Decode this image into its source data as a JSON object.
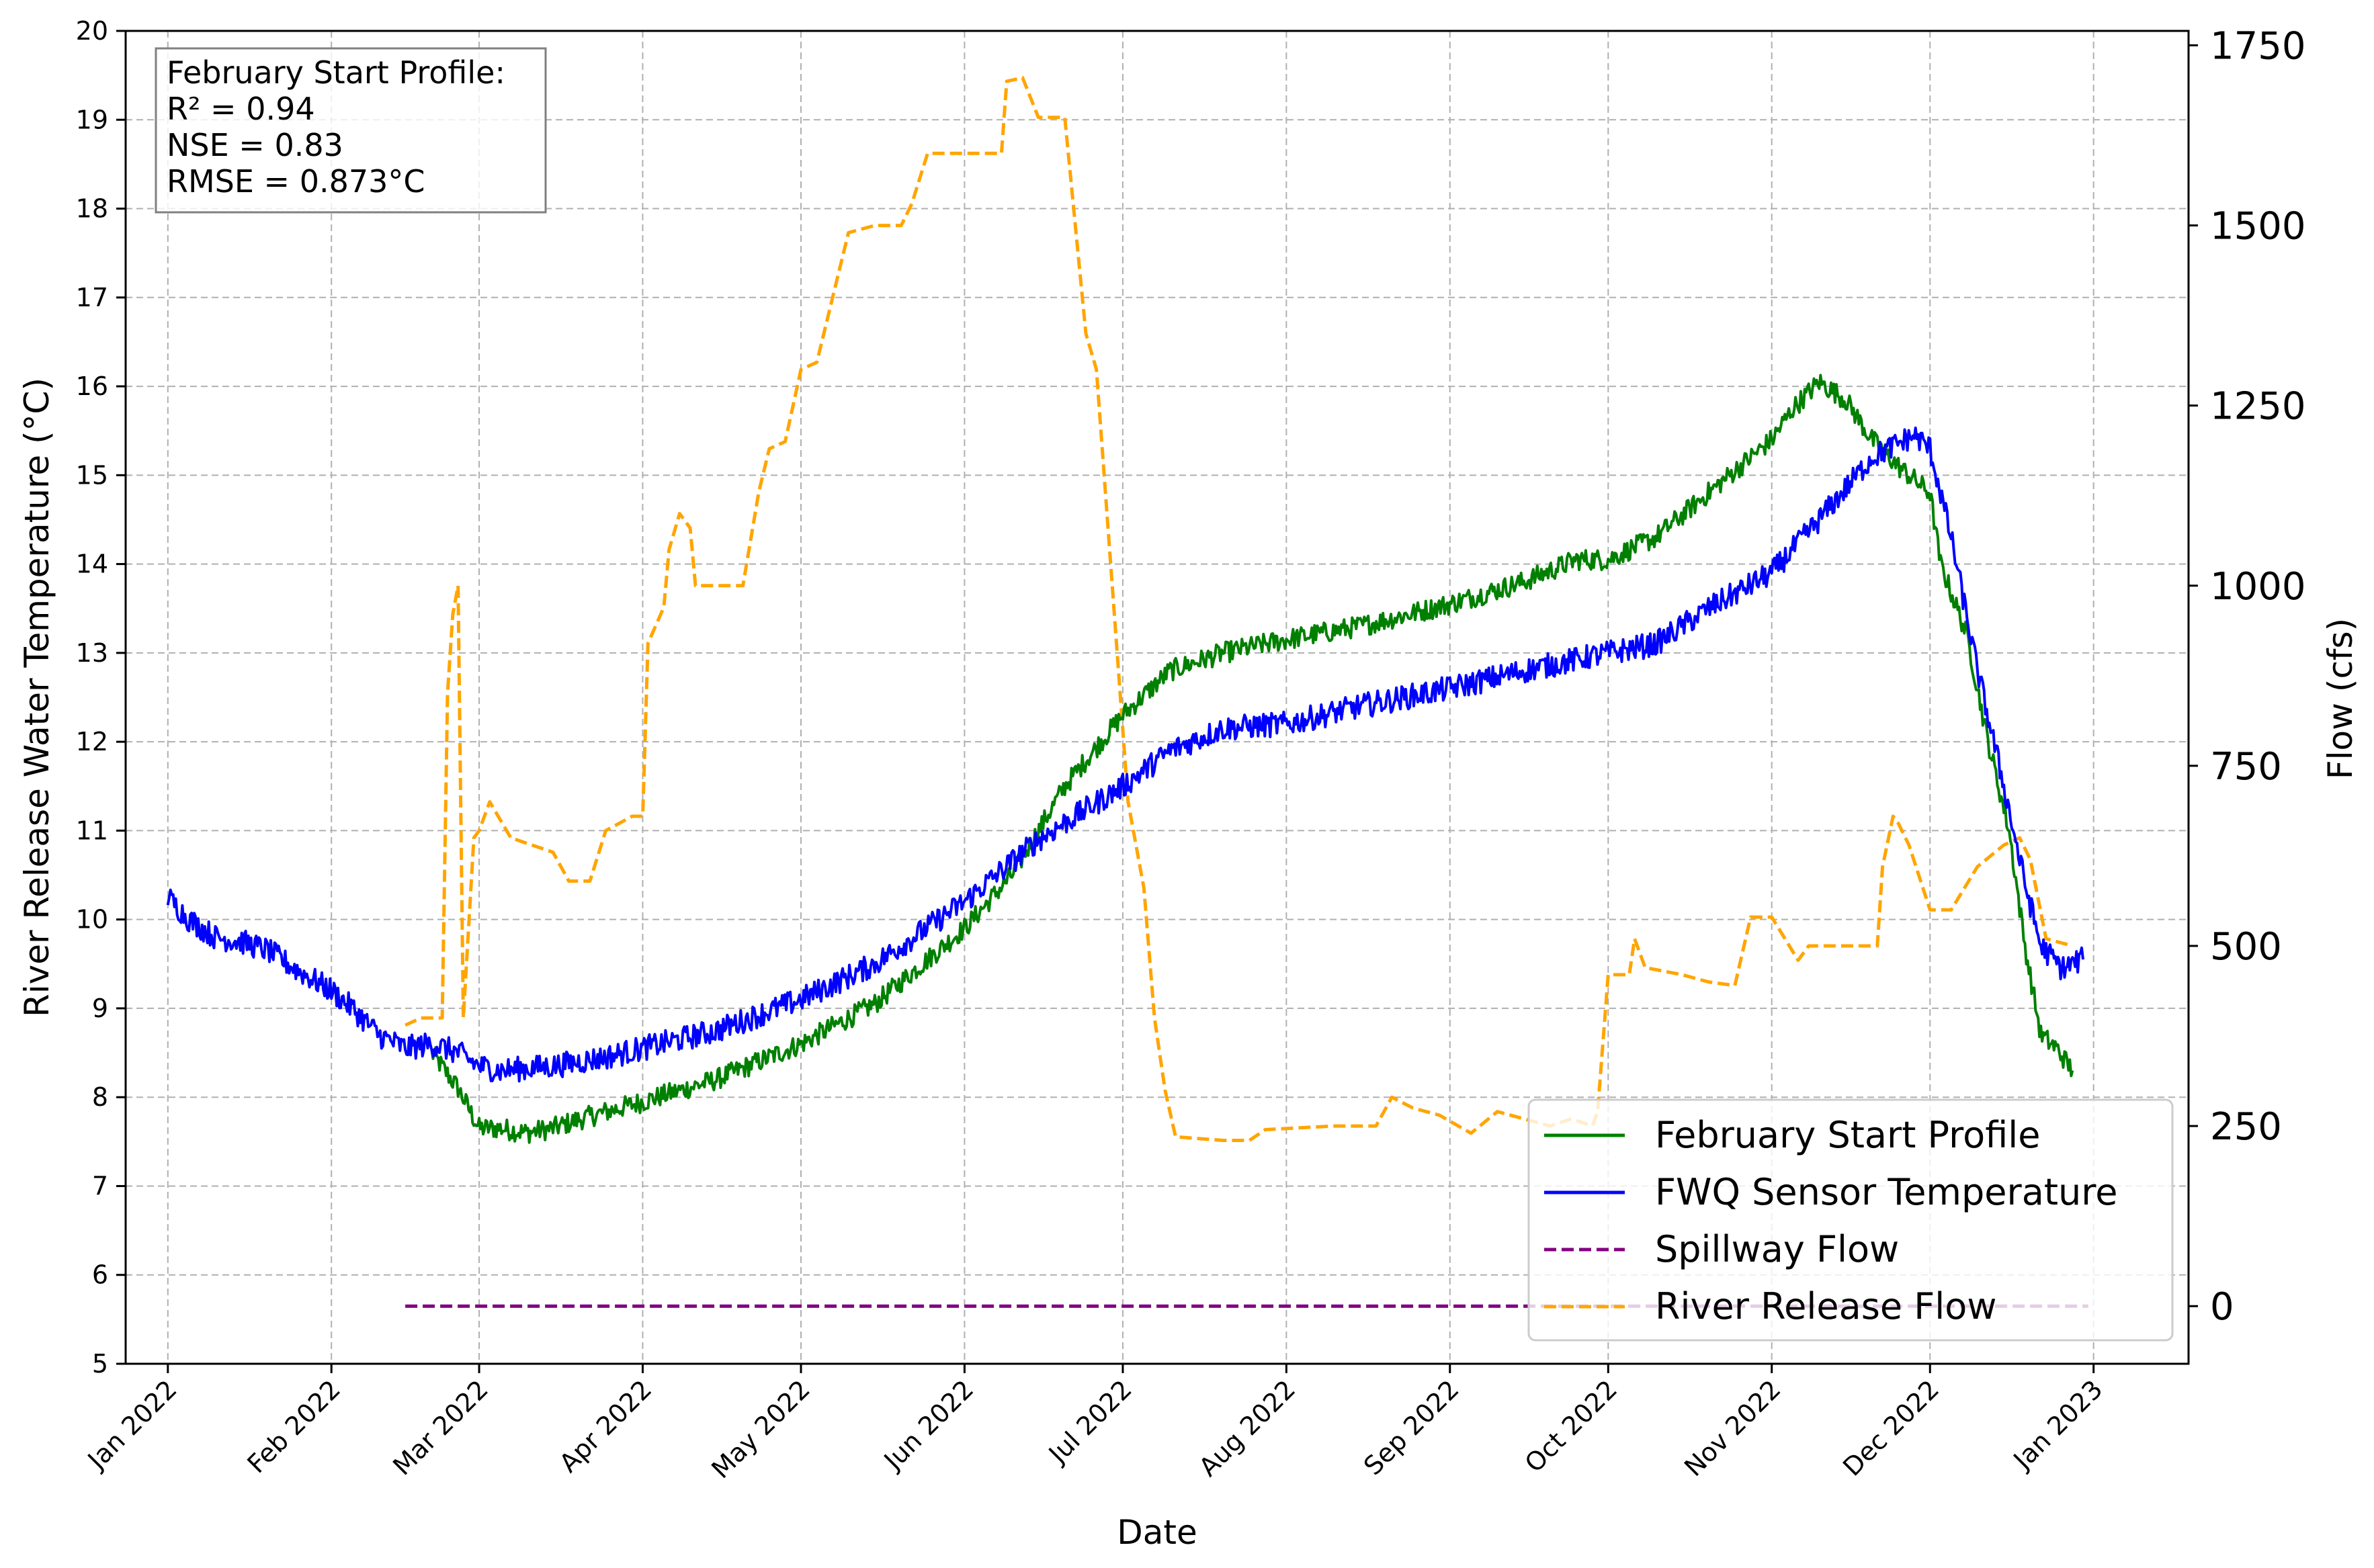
{
  "chart_data": {
    "type": "line",
    "xlabel": "Date",
    "ylabel_left": "River Release Water Temperature (°C)",
    "ylabel_right": "Flow (cfs)",
    "x_range": [
      "2021-12-24",
      "2023-01-19"
    ],
    "x_ticks": [
      {
        "date": "2022-01-01",
        "label": "Jan 2022"
      },
      {
        "date": "2022-02-01",
        "label": "Feb 2022"
      },
      {
        "date": "2022-03-01",
        "label": "Mar 2022"
      },
      {
        "date": "2022-04-01",
        "label": "Apr 2022"
      },
      {
        "date": "2022-05-01",
        "label": "May 2022"
      },
      {
        "date": "2022-06-01",
        "label": "Jun 2022"
      },
      {
        "date": "2022-07-01",
        "label": "Jul 2022"
      },
      {
        "date": "2022-08-01",
        "label": "Aug 2022"
      },
      {
        "date": "2022-09-01",
        "label": "Sep 2022"
      },
      {
        "date": "2022-10-01",
        "label": "Oct 2022"
      },
      {
        "date": "2022-11-01",
        "label": "Nov 2022"
      },
      {
        "date": "2022-12-01",
        "label": "Dec 2022"
      },
      {
        "date": "2023-01-01",
        "label": "Jan 2023"
      }
    ],
    "y_left_range": [
      5,
      20
    ],
    "y_left_ticks": [
      5,
      6,
      7,
      8,
      9,
      10,
      11,
      12,
      13,
      14,
      15,
      16,
      17,
      18,
      19,
      20
    ],
    "y_right_range": [
      -80,
      1770
    ],
    "y_right_ticks": [
      0,
      250,
      500,
      750,
      1000,
      1250,
      1500,
      1750
    ],
    "grid": true,
    "legend_position": "lower-right",
    "stats_box": {
      "lines": [
        "February Start Profile:",
        "R² = 0.94",
        "NSE = 0.83",
        "RMSE = 0.873°C"
      ]
    },
    "series": [
      {
        "name": "February Start Profile",
        "axis": "left",
        "color": "#008000",
        "style": "solid",
        "noise": 0.12,
        "points": [
          [
            "2022-02-20",
            8.5
          ],
          [
            "2022-02-25",
            8.1
          ],
          [
            "2022-03-01",
            7.65
          ],
          [
            "2022-03-05",
            7.65
          ],
          [
            "2022-03-10",
            7.6
          ],
          [
            "2022-03-15",
            7.65
          ],
          [
            "2022-03-20",
            7.75
          ],
          [
            "2022-04-01",
            7.95
          ],
          [
            "2022-04-15",
            8.2
          ],
          [
            "2022-05-01",
            8.6
          ],
          [
            "2022-05-15",
            9.05
          ],
          [
            "2022-06-01",
            9.9
          ],
          [
            "2022-06-10",
            10.5
          ],
          [
            "2022-06-20",
            11.5
          ],
          [
            "2022-07-01",
            12.3
          ],
          [
            "2022-07-10",
            12.8
          ],
          [
            "2022-07-20",
            13.0
          ],
          [
            "2022-08-01",
            13.15
          ],
          [
            "2022-08-15",
            13.3
          ],
          [
            "2022-09-01",
            13.55
          ],
          [
            "2022-09-15",
            13.8
          ],
          [
            "2022-09-25",
            14.05
          ],
          [
            "2022-10-01",
            14.05
          ],
          [
            "2022-10-10",
            14.3
          ],
          [
            "2022-10-20",
            14.8
          ],
          [
            "2022-11-01",
            15.4
          ],
          [
            "2022-11-05",
            15.75
          ],
          [
            "2022-11-10",
            16.05
          ],
          [
            "2022-11-15",
            15.85
          ],
          [
            "2022-11-20",
            15.4
          ],
          [
            "2022-11-25",
            15.1
          ],
          [
            "2022-12-01",
            14.8
          ],
          [
            "2022-12-03",
            14.0
          ],
          [
            "2022-12-08",
            13.2
          ],
          [
            "2022-12-12",
            12.0
          ],
          [
            "2022-12-16",
            11.0
          ],
          [
            "2022-12-19",
            9.7
          ],
          [
            "2022-12-22",
            8.7
          ],
          [
            "2022-12-25",
            8.55
          ],
          [
            "2022-12-28",
            8.3
          ]
        ]
      },
      {
        "name": "FWQ Sensor Temperature",
        "axis": "left",
        "color": "#0000ff",
        "style": "solid",
        "noise": 0.14,
        "points": [
          [
            "2022-01-01",
            10.25
          ],
          [
            "2022-01-05",
            10.0
          ],
          [
            "2022-01-10",
            9.8
          ],
          [
            "2022-01-15",
            9.75
          ],
          [
            "2022-01-20",
            9.65
          ],
          [
            "2022-01-25",
            9.45
          ],
          [
            "2022-02-01",
            9.2
          ],
          [
            "2022-02-05",
            9.0
          ],
          [
            "2022-02-10",
            8.7
          ],
          [
            "2022-02-15",
            8.55
          ],
          [
            "2022-02-20",
            8.6
          ],
          [
            "2022-02-25",
            8.5
          ],
          [
            "2022-03-01",
            8.35
          ],
          [
            "2022-03-05",
            8.3
          ],
          [
            "2022-03-15",
            8.35
          ],
          [
            "2022-03-25",
            8.45
          ],
          [
            "2022-04-01",
            8.55
          ],
          [
            "2022-04-15",
            8.75
          ],
          [
            "2022-05-01",
            9.1
          ],
          [
            "2022-05-15",
            9.5
          ],
          [
            "2022-06-01",
            10.2
          ],
          [
            "2022-06-15",
            10.9
          ],
          [
            "2022-07-01",
            11.5
          ],
          [
            "2022-07-10",
            11.9
          ],
          [
            "2022-07-20",
            12.15
          ],
          [
            "2022-08-01",
            12.2
          ],
          [
            "2022-08-15",
            12.4
          ],
          [
            "2022-09-01",
            12.6
          ],
          [
            "2022-09-15",
            12.8
          ],
          [
            "2022-10-01",
            13.0
          ],
          [
            "2022-10-10",
            13.1
          ],
          [
            "2022-10-20",
            13.5
          ],
          [
            "2022-11-01",
            13.9
          ],
          [
            "2022-11-10",
            14.5
          ],
          [
            "2022-11-20",
            15.2
          ],
          [
            "2022-11-28",
            15.45
          ],
          [
            "2022-12-01",
            15.3
          ],
          [
            "2022-12-05",
            14.3
          ],
          [
            "2022-12-10",
            12.8
          ],
          [
            "2022-12-15",
            11.5
          ],
          [
            "2022-12-19",
            10.4
          ],
          [
            "2022-12-22",
            9.7
          ],
          [
            "2022-12-26",
            9.45
          ],
          [
            "2022-12-30",
            9.55
          ]
        ]
      },
      {
        "name": "Spillway Flow",
        "axis": "right",
        "color": "#800080",
        "style": "dashed",
        "noise": 0,
        "points": [
          [
            "2022-02-15",
            0
          ],
          [
            "2022-12-31",
            0
          ]
        ]
      },
      {
        "name": "River Release Flow",
        "axis": "right",
        "color": "#ffa500",
        "style": "dashed",
        "noise": 0,
        "points": [
          [
            "2022-02-15",
            390
          ],
          [
            "2022-02-18",
            400
          ],
          [
            "2022-02-22",
            400
          ],
          [
            "2022-02-23",
            850
          ],
          [
            "2022-02-24",
            960
          ],
          [
            "2022-02-25",
            1000
          ],
          [
            "2022-02-26",
            400
          ],
          [
            "2022-02-28",
            650
          ],
          [
            "2022-03-01",
            660
          ],
          [
            "2022-03-03",
            700
          ],
          [
            "2022-03-07",
            650
          ],
          [
            "2022-03-15",
            630
          ],
          [
            "2022-03-18",
            590
          ],
          [
            "2022-03-22",
            590
          ],
          [
            "2022-03-25",
            660
          ],
          [
            "2022-03-30",
            680
          ],
          [
            "2022-04-01",
            680
          ],
          [
            "2022-04-02",
            920
          ],
          [
            "2022-04-05",
            970
          ],
          [
            "2022-04-06",
            1050
          ],
          [
            "2022-04-08",
            1100
          ],
          [
            "2022-04-10",
            1080
          ],
          [
            "2022-04-11",
            1000
          ],
          [
            "2022-04-20",
            1000
          ],
          [
            "2022-04-23",
            1130
          ],
          [
            "2022-04-25",
            1190
          ],
          [
            "2022-04-28",
            1200
          ],
          [
            "2022-05-01",
            1300
          ],
          [
            "2022-05-04",
            1310
          ],
          [
            "2022-05-07",
            1400
          ],
          [
            "2022-05-10",
            1490
          ],
          [
            "2022-05-15",
            1500
          ],
          [
            "2022-05-20",
            1500
          ],
          [
            "2022-05-22",
            1530
          ],
          [
            "2022-05-25",
            1600
          ],
          [
            "2022-06-02",
            1600
          ],
          [
            "2022-06-08",
            1600
          ],
          [
            "2022-06-09",
            1700
          ],
          [
            "2022-06-12",
            1705
          ],
          [
            "2022-06-15",
            1650
          ],
          [
            "2022-06-20",
            1650
          ],
          [
            "2022-06-22",
            1500
          ],
          [
            "2022-06-24",
            1350
          ],
          [
            "2022-06-26",
            1300
          ],
          [
            "2022-06-28",
            1100
          ],
          [
            "2022-06-30",
            900
          ],
          [
            "2022-07-02",
            700
          ],
          [
            "2022-07-05",
            580
          ],
          [
            "2022-07-07",
            400
          ],
          [
            "2022-07-09",
            300
          ],
          [
            "2022-07-11",
            235
          ],
          [
            "2022-07-20",
            230
          ],
          [
            "2022-07-25",
            230
          ],
          [
            "2022-07-28",
            245
          ],
          [
            "2022-08-10",
            250
          ],
          [
            "2022-08-18",
            250
          ],
          [
            "2022-08-21",
            290
          ],
          [
            "2022-08-25",
            275
          ],
          [
            "2022-08-30",
            265
          ],
          [
            "2022-09-05",
            240
          ],
          [
            "2022-09-10",
            270
          ],
          [
            "2022-09-15",
            260
          ],
          [
            "2022-09-20",
            250
          ],
          [
            "2022-09-24",
            260
          ],
          [
            "2022-09-28",
            250
          ],
          [
            "2022-09-29",
            270
          ],
          [
            "2022-10-01",
            460
          ],
          [
            "2022-10-05",
            460
          ],
          [
            "2022-10-06",
            510
          ],
          [
            "2022-10-08",
            470
          ],
          [
            "2022-10-15",
            460
          ],
          [
            "2022-10-20",
            450
          ],
          [
            "2022-10-25",
            445
          ],
          [
            "2022-10-28",
            540
          ],
          [
            "2022-11-01",
            540
          ],
          [
            "2022-11-06",
            480
          ],
          [
            "2022-11-08",
            500
          ],
          [
            "2022-11-15",
            500
          ],
          [
            "2022-11-21",
            500
          ],
          [
            "2022-11-22",
            610
          ],
          [
            "2022-11-24",
            680
          ],
          [
            "2022-11-25",
            670
          ],
          [
            "2022-11-27",
            640
          ],
          [
            "2022-12-01",
            550
          ],
          [
            "2022-12-05",
            550
          ],
          [
            "2022-12-10",
            610
          ],
          [
            "2022-12-15",
            640
          ],
          [
            "2022-12-18",
            650
          ],
          [
            "2022-12-20",
            620
          ],
          [
            "2022-12-23",
            510
          ],
          [
            "2022-12-28",
            500
          ]
        ]
      }
    ]
  }
}
